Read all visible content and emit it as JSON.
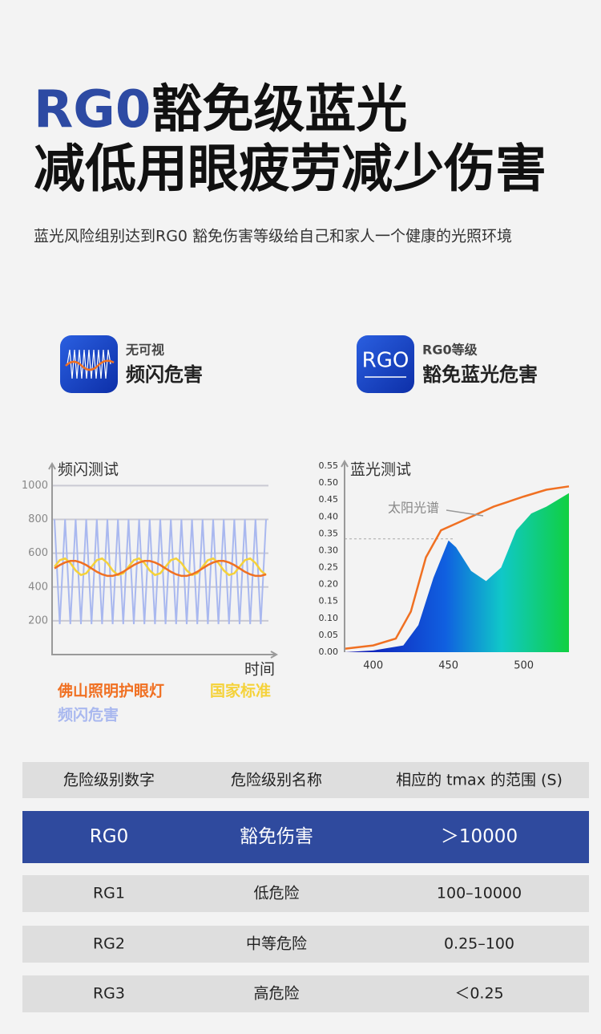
{
  "header": {
    "title_highlight": "RG0",
    "title_rest": "豁免级蓝光",
    "title_line2": "减低用眼疲劳减少伤害",
    "subtitle": "蓝光风险组别达到RG0 豁免伤害等级给自己和家人一个健康的光照环境"
  },
  "icons": [
    {
      "badge": null,
      "small": "无可视",
      "big": "频闪危害"
    },
    {
      "badge": "RGO",
      "small": "RG0等级",
      "big": "豁免蓝光危害"
    }
  ],
  "chart_data": [
    {
      "type": "line",
      "title": "频闪测试",
      "xlabel": "时间",
      "ylim": [
        0,
        1130
      ],
      "yticks": [
        200,
        400,
        600,
        800,
        1000
      ],
      "grid": true,
      "series": [
        {
          "name": "频闪危害",
          "color": "#a9b8ef",
          "values": [
            800,
            180,
            800,
            180,
            800,
            180,
            800,
            180,
            800,
            180,
            800,
            180,
            800,
            180,
            800,
            180,
            800,
            180,
            800,
            180,
            800,
            180,
            800,
            180,
            800,
            180,
            800,
            180,
            800,
            180,
            800,
            180,
            800,
            180,
            800,
            180,
            800,
            180,
            800,
            180,
            800
          ]
        },
        {
          "name": "国家标准",
          "color": "#f5d23a",
          "values": [
            520,
            559,
            569,
            542,
            498,
            471,
            481,
            520,
            559,
            569,
            542,
            498,
            471,
            481,
            520,
            559,
            569,
            542,
            498,
            471,
            481,
            520,
            559,
            569,
            542,
            498,
            471,
            481,
            520,
            559,
            569,
            542,
            498,
            471,
            481,
            520,
            559,
            569,
            542,
            498,
            471
          ]
        },
        {
          "name": "佛山照明护眼灯",
          "color": "#f07022",
          "values": [
            510,
            530,
            545,
            554,
            554,
            545,
            530,
            510,
            490,
            475,
            466,
            466,
            475,
            490,
            510,
            530,
            545,
            554,
            554,
            545,
            530,
            510,
            490,
            475,
            466,
            466,
            475,
            490,
            510,
            530,
            545,
            554,
            554,
            545,
            530,
            510,
            490,
            475,
            466,
            466,
            475
          ]
        }
      ]
    },
    {
      "type": "line",
      "title": "蓝光测试",
      "xlim": [
        381,
        530
      ],
      "ylim": [
        0,
        0.55
      ],
      "xticks": [
        400,
        450,
        500
      ],
      "yticks": [
        {
          "value": 0,
          "label": "0.00"
        },
        {
          "value": 0.05,
          "label": "0.05"
        },
        {
          "value": 0.1,
          "label": "0.10"
        },
        {
          "value": 0.15,
          "label": "0.15"
        },
        {
          "value": 0.2,
          "label": "0.20"
        },
        {
          "value": 0.25,
          "label": "0.25"
        },
        {
          "value": 0.3,
          "label": "0.30"
        },
        {
          "value": 0.35,
          "label": "0.35"
        },
        {
          "value": 0.4,
          "label": "0.40"
        },
        {
          "value": 0.45,
          "label": "0.45"
        },
        {
          "value": 0.5,
          "label": "0.50"
        },
        {
          "value": 0.55,
          "label": "0.55"
        }
      ],
      "hline": 0.335,
      "series": [
        {
          "area": true,
          "x": [
            381,
            400,
            420,
            430,
            440,
            450,
            455,
            465,
            475,
            485,
            495,
            505,
            515,
            530
          ],
          "values": [
            0,
            0.005,
            0.02,
            0.08,
            0.22,
            0.33,
            0.31,
            0.24,
            0.21,
            0.25,
            0.36,
            0.41,
            0.43,
            0.47
          ]
        },
        {
          "name": "太阳光谱",
          "color": "#f07022",
          "x": [
            381,
            400,
            415,
            425,
            435,
            445,
            460,
            480,
            500,
            515,
            530
          ],
          "values": [
            0.01,
            0.02,
            0.04,
            0.12,
            0.28,
            0.36,
            0.39,
            0.43,
            0.46,
            0.48,
            0.49
          ]
        }
      ]
    }
  ],
  "table": {
    "header": [
      "危险级别数字",
      "危险级别名称",
      "相应的 tmax 的范围 (S)"
    ],
    "rows": [
      [
        "RG0",
        "豁免伤害",
        "＞10000"
      ],
      [
        "RG1",
        "低危险",
        "100–10000"
      ],
      [
        "RG2",
        "中等危险",
        "0.25–100"
      ],
      [
        "RG3",
        "高危险",
        "＜0.25"
      ]
    ]
  }
}
